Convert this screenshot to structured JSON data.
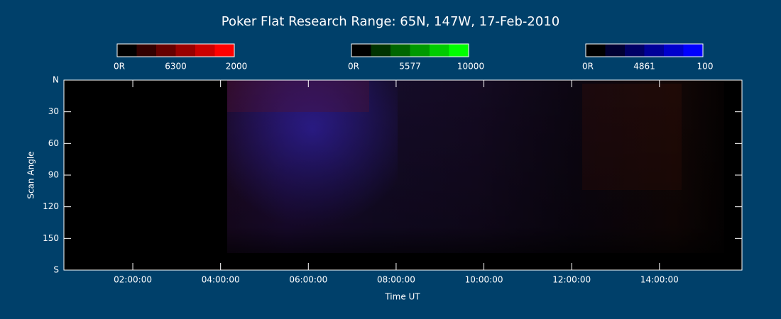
{
  "chart_data": {
    "type": "keogram",
    "title": "Poker Flat Research Range: 65N, 147W, 17-Feb-2010",
    "xlabel": "Time UT",
    "ylabel": "Scan Angle",
    "xlim": [
      0.43,
      15.88
    ],
    "xticks": [
      {
        "value": 2,
        "label": "02:00:00"
      },
      {
        "value": 4,
        "label": "04:00:00"
      },
      {
        "value": 6,
        "label": "06:00:00"
      },
      {
        "value": 8,
        "label": "08:00:00"
      },
      {
        "value": 10,
        "label": "10:00:00"
      },
      {
        "value": 12,
        "label": "12:00:00"
      },
      {
        "value": 14,
        "label": "14:00:00"
      }
    ],
    "ylim": [
      180,
      0
    ],
    "yticks": [
      {
        "value": 0,
        "label": "N"
      },
      30,
      60,
      90,
      120,
      150,
      {
        "value": 180,
        "label": "S"
      }
    ],
    "colorbars": [
      {
        "min": {
          "value": 0,
          "label": "0R"
        },
        "wavelength": "6300",
        "max": 2000,
        "color": "#ff0000"
      },
      {
        "min": {
          "value": 0,
          "label": "0R"
        },
        "wavelength": "5577",
        "max": 10000,
        "color": "#00ff00"
      },
      {
        "min": {
          "value": 0,
          "label": "0R"
        },
        "wavelength": "4861",
        "max": 100,
        "color": "#0000ff"
      }
    ]
  }
}
